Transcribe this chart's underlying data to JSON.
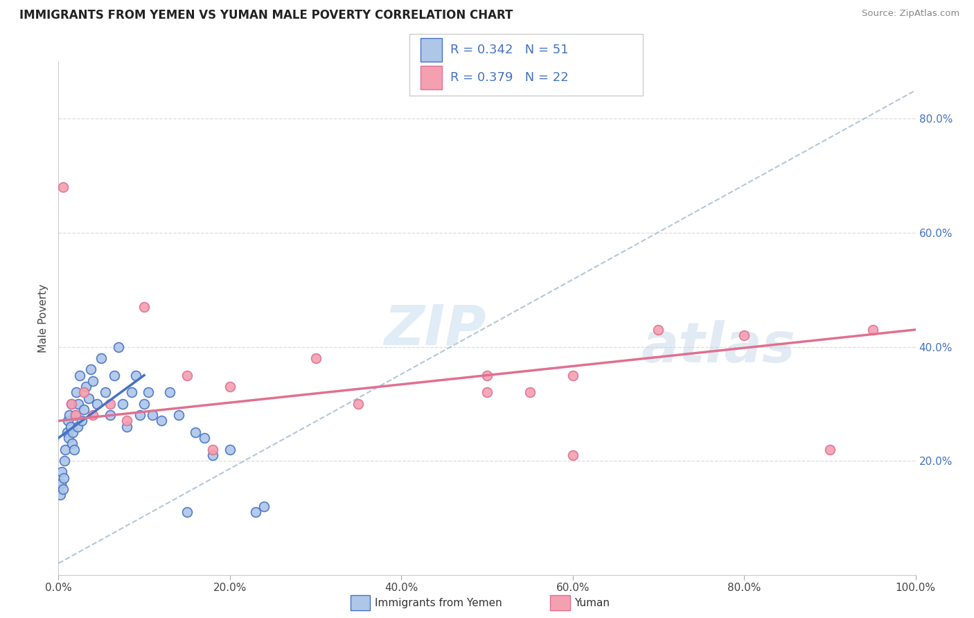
{
  "title": "IMMIGRANTS FROM YEMEN VS YUMAN MALE POVERTY CORRELATION CHART",
  "source": "Source: ZipAtlas.com",
  "ylabel": "Male Poverty",
  "legend_label1": "Immigrants from Yemen",
  "legend_label2": "Yuman",
  "r1": 0.342,
  "n1": 51,
  "r2": 0.379,
  "n2": 22,
  "color_blue": "#aec6e8",
  "color_pink": "#f4a0b0",
  "line_blue": "#4472c4",
  "line_pink": "#e07090",
  "line_diag_color": "#a0b8d0",
  "ytick_color": "#4472c4",
  "blue_scatter_x": [
    0.2,
    0.3,
    0.4,
    0.5,
    0.6,
    0.7,
    0.8,
    1.0,
    1.1,
    1.2,
    1.3,
    1.4,
    1.5,
    1.6,
    1.7,
    1.8,
    2.0,
    2.1,
    2.2,
    2.3,
    2.5,
    2.7,
    3.0,
    3.2,
    3.5,
    3.8,
    4.0,
    4.5,
    5.0,
    5.5,
    6.0,
    6.5,
    7.0,
    7.5,
    8.0,
    8.5,
    9.0,
    9.5,
    10.0,
    10.5,
    11.0,
    12.0,
    13.0,
    14.0,
    15.0,
    16.0,
    17.0,
    18.0,
    20.0,
    23.0,
    24.0
  ],
  "blue_scatter_y": [
    14.0,
    16.0,
    18.0,
    15.0,
    17.0,
    20.0,
    22.0,
    25.0,
    27.0,
    24.0,
    28.0,
    26.0,
    30.0,
    23.0,
    25.0,
    22.0,
    28.0,
    32.0,
    26.0,
    30.0,
    35.0,
    27.0,
    29.0,
    33.0,
    31.0,
    36.0,
    34.0,
    30.0,
    38.0,
    32.0,
    28.0,
    35.0,
    40.0,
    30.0,
    26.0,
    32.0,
    35.0,
    28.0,
    30.0,
    32.0,
    28.0,
    27.0,
    32.0,
    28.0,
    11.0,
    25.0,
    24.0,
    21.0,
    22.0,
    11.0,
    12.0
  ],
  "pink_scatter_x": [
    0.5,
    1.5,
    2.0,
    3.0,
    4.0,
    6.0,
    8.0,
    10.0,
    15.0,
    18.0,
    20.0,
    30.0,
    35.0,
    50.0,
    55.0,
    60.0,
    70.0,
    80.0,
    90.0,
    95.0,
    50.0,
    60.0
  ],
  "pink_scatter_y": [
    68.0,
    30.0,
    28.0,
    32.0,
    28.0,
    30.0,
    27.0,
    47.0,
    35.0,
    22.0,
    33.0,
    38.0,
    30.0,
    35.0,
    32.0,
    21.0,
    43.0,
    42.0,
    22.0,
    43.0,
    32.0,
    35.0
  ],
  "blue_line_x0": 0.0,
  "blue_line_y0": 24.0,
  "blue_line_x1": 10.0,
  "blue_line_y1": 35.0,
  "pink_line_x0": 0.0,
  "pink_line_y0": 27.0,
  "pink_line_x1": 100.0,
  "pink_line_y1": 43.0,
  "diag_x0": 0.0,
  "diag_y0": 2.0,
  "diag_x1": 100.0,
  "diag_y1": 85.0,
  "xlim": [
    0,
    100
  ],
  "ylim": [
    0,
    90
  ],
  "xticks": [
    0,
    20,
    40,
    60,
    80,
    100
  ],
  "yticks_right": [
    20,
    40,
    60,
    80
  ],
  "xticklabels": [
    "0.0%",
    "20.0%",
    "40.0%",
    "60.0%",
    "80.0%",
    "100.0%"
  ],
  "yticklabels_right": [
    "20.0%",
    "40.0%",
    "60.0%",
    "80.0%"
  ]
}
